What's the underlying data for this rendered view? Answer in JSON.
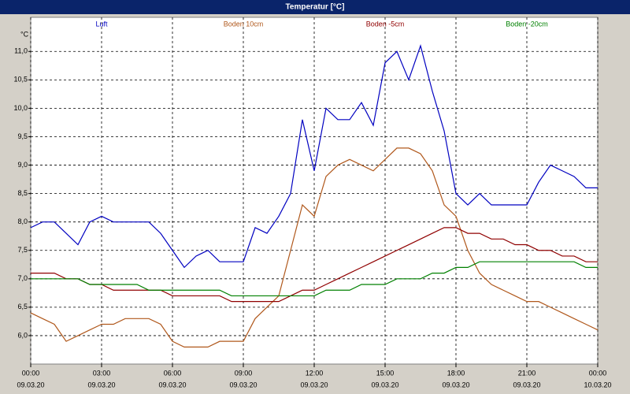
{
  "chart_data": {
    "type": "line",
    "title": "Temperatur [°C]",
    "y_unit": "°C",
    "x": [
      0,
      0.5,
      1,
      1.5,
      2,
      2.5,
      3,
      3.5,
      4,
      4.5,
      5,
      5.5,
      6,
      6.5,
      7,
      7.5,
      8,
      8.5,
      9,
      9.5,
      10,
      10.5,
      11,
      11.5,
      12,
      12.5,
      13,
      13.5,
      14,
      14.5,
      15,
      15.5,
      16,
      16.5,
      17,
      17.5,
      18,
      18.5,
      19,
      19.5,
      20,
      20.5,
      21,
      21.5,
      22,
      22.5,
      23,
      23.5,
      24
    ],
    "xlim": [
      0,
      24
    ],
    "xticks": [
      {
        "value": 0,
        "label": "00:00"
      },
      {
        "value": 3,
        "label": "03:00"
      },
      {
        "value": 6,
        "label": "06:00"
      },
      {
        "value": 9,
        "label": "09:00"
      },
      {
        "value": 12,
        "label": "12:00"
      },
      {
        "value": 15,
        "label": "15:00"
      },
      {
        "value": 18,
        "label": "18:00"
      },
      {
        "value": 21,
        "label": "21:00"
      },
      {
        "value": 24,
        "label": "00:00"
      }
    ],
    "xtick_dates": [
      "09.03.20",
      "09.03.20",
      "09.03.20",
      "09.03.20",
      "09.03.20",
      "09.03.20",
      "09.03.20",
      "09.03.20",
      "10.03.20"
    ],
    "ylim": [
      5.5,
      11.6
    ],
    "yticks": [
      {
        "value": 6,
        "label": "6,0"
      },
      {
        "value": 6.5,
        "label": "6,5"
      },
      {
        "value": 7,
        "label": "7,0"
      },
      {
        "value": 7.5,
        "label": "7,5"
      },
      {
        "value": 8,
        "label": "8,0"
      },
      {
        "value": 8.5,
        "label": "8,5"
      },
      {
        "value": 9,
        "label": "9,0"
      },
      {
        "value": 9.5,
        "label": "9,5"
      },
      {
        "value": 10,
        "label": "10,0"
      },
      {
        "value": 10.5,
        "label": "10,5"
      },
      {
        "value": 11,
        "label": "11,0"
      }
    ],
    "grid": true,
    "series": [
      {
        "name": "Luft",
        "color": "#0000c0",
        "values": [
          7.9,
          8.0,
          8.0,
          7.8,
          7.6,
          8.0,
          8.1,
          8.0,
          8.0,
          8.0,
          8.0,
          7.8,
          7.5,
          7.2,
          7.4,
          7.5,
          7.3,
          7.3,
          7.3,
          7.9,
          7.8,
          8.1,
          8.5,
          9.8,
          8.9,
          10.0,
          9.8,
          9.8,
          10.1,
          9.7,
          10.8,
          11.0,
          10.5,
          11.1,
          10.3,
          9.6,
          8.5,
          8.3,
          8.5,
          8.3,
          8.3,
          8.3,
          8.3,
          8.7,
          9.0,
          8.9,
          8.8,
          8.6,
          8.6
        ]
      },
      {
        "name": "Boden 10cm",
        "color": "#b0581c",
        "values": [
          6.4,
          6.3,
          6.2,
          5.9,
          6.0,
          6.1,
          6.2,
          6.2,
          6.3,
          6.3,
          6.3,
          6.2,
          5.9,
          5.8,
          5.8,
          5.8,
          5.9,
          5.9,
          5.9,
          6.3,
          6.5,
          6.7,
          7.5,
          8.3,
          8.1,
          8.8,
          9.0,
          9.1,
          9.0,
          8.9,
          9.1,
          9.3,
          9.3,
          9.2,
          8.9,
          8.3,
          8.1,
          7.5,
          7.1,
          6.9,
          6.8,
          6.7,
          6.6,
          6.6,
          6.5,
          6.4,
          6.3,
          6.2,
          6.1
        ]
      },
      {
        "name": "Boden -5cm",
        "color": "#900000",
        "values": [
          7.1,
          7.1,
          7.1,
          7.0,
          7.0,
          6.9,
          6.9,
          6.8,
          6.8,
          6.8,
          6.8,
          6.8,
          6.7,
          6.7,
          6.7,
          6.7,
          6.7,
          6.6,
          6.6,
          6.6,
          6.6,
          6.6,
          6.7,
          6.8,
          6.8,
          6.9,
          7.0,
          7.1,
          7.2,
          7.3,
          7.4,
          7.5,
          7.6,
          7.7,
          7.8,
          7.9,
          7.9,
          7.8,
          7.8,
          7.7,
          7.7,
          7.6,
          7.6,
          7.5,
          7.5,
          7.4,
          7.4,
          7.3,
          7.3
        ]
      },
      {
        "name": "Boden -20cm",
        "color": "#008000",
        "values": [
          7.0,
          7.0,
          7.0,
          7.0,
          7.0,
          6.9,
          6.9,
          6.9,
          6.9,
          6.9,
          6.8,
          6.8,
          6.8,
          6.8,
          6.8,
          6.8,
          6.8,
          6.7,
          6.7,
          6.7,
          6.7,
          6.7,
          6.7,
          6.7,
          6.7,
          6.8,
          6.8,
          6.8,
          6.9,
          6.9,
          6.9,
          7.0,
          7.0,
          7.0,
          7.1,
          7.1,
          7.2,
          7.2,
          7.3,
          7.3,
          7.3,
          7.3,
          7.3,
          7.3,
          7.3,
          7.3,
          7.3,
          7.2,
          7.2
        ]
      }
    ]
  }
}
